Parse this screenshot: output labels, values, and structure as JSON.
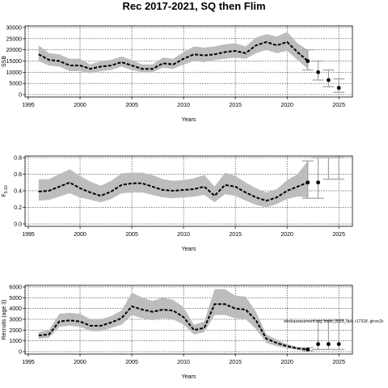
{
  "title": "Rec 2017-2021, SQ then Flim",
  "colors": {
    "band": "#bdbdbd",
    "line": "#000000",
    "grid": "#000000",
    "proj": "#a0a0a0"
  },
  "chart_data": [
    {
      "type": "line",
      "xlabel": "Years",
      "ylabel": "SSB",
      "xlim": [
        1995,
        2026
      ],
      "ylim": [
        0,
        30000
      ],
      "xticks": [
        1995,
        2000,
        2005,
        2010,
        2015,
        2020,
        2025
      ],
      "yticks": [
        0,
        5000,
        10000,
        15000,
        20000,
        25000,
        30000
      ],
      "grid": true,
      "x": [
        1996,
        1997,
        1998,
        1999,
        2000,
        2001,
        2002,
        2003,
        2004,
        2005,
        2006,
        2007,
        2008,
        2009,
        2010,
        2011,
        2012,
        2013,
        2014,
        2015,
        2016,
        2017,
        2018,
        2019,
        2020,
        2021,
        2022
      ],
      "series": [
        {
          "values": [
            18000,
            15500,
            15000,
            13000,
            13000,
            11500,
            12500,
            13000,
            14500,
            13000,
            11500,
            11500,
            14000,
            13500,
            16000,
            18000,
            17500,
            18000,
            19000,
            19500,
            18500,
            22000,
            23500,
            22000,
            23500,
            19000,
            15000
          ],
          "lower": [
            15000,
            13000,
            12500,
            10500,
            10500,
            9500,
            10500,
            11000,
            12500,
            11000,
            10000,
            10000,
            12000,
            11500,
            13500,
            15000,
            14500,
            15500,
            16000,
            16500,
            16000,
            18500,
            20000,
            18500,
            19500,
            15500,
            11500
          ],
          "upper": [
            22000,
            18500,
            18000,
            16000,
            16000,
            13500,
            15000,
            15500,
            17000,
            15500,
            13500,
            13500,
            16500,
            16000,
            19000,
            21500,
            21000,
            21500,
            22500,
            23000,
            21500,
            25500,
            27000,
            26000,
            28000,
            23000,
            20000
          ]
        }
      ],
      "projection": {
        "x": [
          2022,
          2023,
          2024,
          2025
        ],
        "values": [
          15000,
          10000,
          6500,
          3000
        ],
        "lower": [
          11000,
          6500,
          3500,
          1000
        ],
        "upper": [
          20000,
          15000,
          11000,
          7000
        ]
      }
    },
    {
      "type": "line",
      "xlabel": "Years",
      "ylabel": "F",
      "ylabel_sub": "5-10",
      "xlim": [
        1995,
        2026
      ],
      "ylim": [
        0,
        0.8
      ],
      "xticks": [
        1995,
        2000,
        2005,
        2010,
        2015,
        2020,
        2025
      ],
      "yticks": [
        0.0,
        0.2,
        0.4,
        0.6,
        0.8
      ],
      "ytick_labels": [
        "0.0",
        "0.2",
        "0.4",
        "0.6",
        "0.8"
      ],
      "grid": true,
      "x": [
        1996,
        1997,
        1998,
        1999,
        2000,
        2001,
        2002,
        2003,
        2004,
        2005,
        2006,
        2007,
        2008,
        2009,
        2010,
        2011,
        2012,
        2013,
        2014,
        2015,
        2016,
        2017,
        2018,
        2019,
        2020,
        2021,
        2022
      ],
      "series": [
        {
          "values": [
            0.39,
            0.4,
            0.45,
            0.5,
            0.43,
            0.38,
            0.34,
            0.39,
            0.47,
            0.49,
            0.49,
            0.45,
            0.41,
            0.4,
            0.41,
            0.42,
            0.45,
            0.34,
            0.47,
            0.45,
            0.38,
            0.32,
            0.28,
            0.32,
            0.4,
            0.45,
            0.5
          ],
          "lower": [
            0.28,
            0.29,
            0.33,
            0.37,
            0.32,
            0.29,
            0.26,
            0.3,
            0.37,
            0.38,
            0.38,
            0.35,
            0.32,
            0.31,
            0.32,
            0.33,
            0.35,
            0.26,
            0.36,
            0.34,
            0.28,
            0.23,
            0.2,
            0.24,
            0.3,
            0.33,
            0.32
          ],
          "upper": [
            0.54,
            0.54,
            0.6,
            0.66,
            0.58,
            0.51,
            0.46,
            0.52,
            0.61,
            0.62,
            0.62,
            0.59,
            0.54,
            0.52,
            0.53,
            0.55,
            0.59,
            0.45,
            0.62,
            0.58,
            0.5,
            0.43,
            0.38,
            0.42,
            0.53,
            0.6,
            0.76
          ]
        }
      ],
      "projection": {
        "x": [
          2022,
          2023,
          2024,
          2025
        ],
        "values": [
          0.5,
          0.5,
          null,
          null
        ],
        "lower": [
          0.31,
          0.31,
          0.54,
          0.54
        ],
        "upper": [
          0.76,
          0.8,
          0.8,
          0.8
        ]
      }
    },
    {
      "type": "line",
      "xlabel": "Years",
      "ylabel": "Recruits (age 3)",
      "xlim": [
        1995,
        2026
      ],
      "ylim": [
        0,
        6000
      ],
      "xticks": [
        1995,
        2000,
        2005,
        2010,
        2015,
        2020,
        2025
      ],
      "yticks": [
        0,
        1000,
        2000,
        3000,
        4000,
        5000,
        6000
      ],
      "grid": true,
      "x": [
        1996,
        1997,
        1998,
        1999,
        2000,
        2001,
        2002,
        2003,
        2004,
        2005,
        2006,
        2007,
        2008,
        2009,
        2010,
        2011,
        2012,
        2013,
        2014,
        2015,
        2016,
        2017,
        2018,
        2019,
        2020,
        2021,
        2022
      ],
      "series": [
        {
          "values": [
            1500,
            1600,
            2800,
            2900,
            2800,
            2400,
            2400,
            2700,
            3100,
            4200,
            3900,
            3700,
            3900,
            3800,
            3200,
            2000,
            2200,
            4400,
            4400,
            4000,
            3900,
            2900,
            1200,
            800,
            500,
            300,
            200
          ],
          "lower": [
            1200,
            1300,
            2300,
            2400,
            2300,
            1900,
            1900,
            2200,
            2500,
            3400,
            3100,
            2900,
            3100,
            3000,
            2500,
            1600,
            1800,
            3400,
            3400,
            3100,
            3000,
            2100,
            800,
            500,
            300,
            150,
            80
          ],
          "upper": [
            1800,
            2000,
            3500,
            3600,
            3500,
            3000,
            3000,
            3300,
            3800,
            5500,
            5000,
            4700,
            5000,
            4800,
            4100,
            2500,
            2800,
            5800,
            5800,
            5200,
            5100,
            3700,
            1600,
            1100,
            700,
            450,
            350
          ]
        }
      ],
      "projection": {
        "x": [
          2022,
          2023,
          2024,
          2025
        ],
        "values": [
          200,
          700,
          700,
          700
        ],
        "lower": [
          80,
          200,
          200,
          200
        ],
        "upper": [
          350,
          2900,
          2900,
          2900
        ]
      },
      "annotation": "stockassessment.org, birds_2023_fast, r17318, git:ec2c"
    }
  ]
}
